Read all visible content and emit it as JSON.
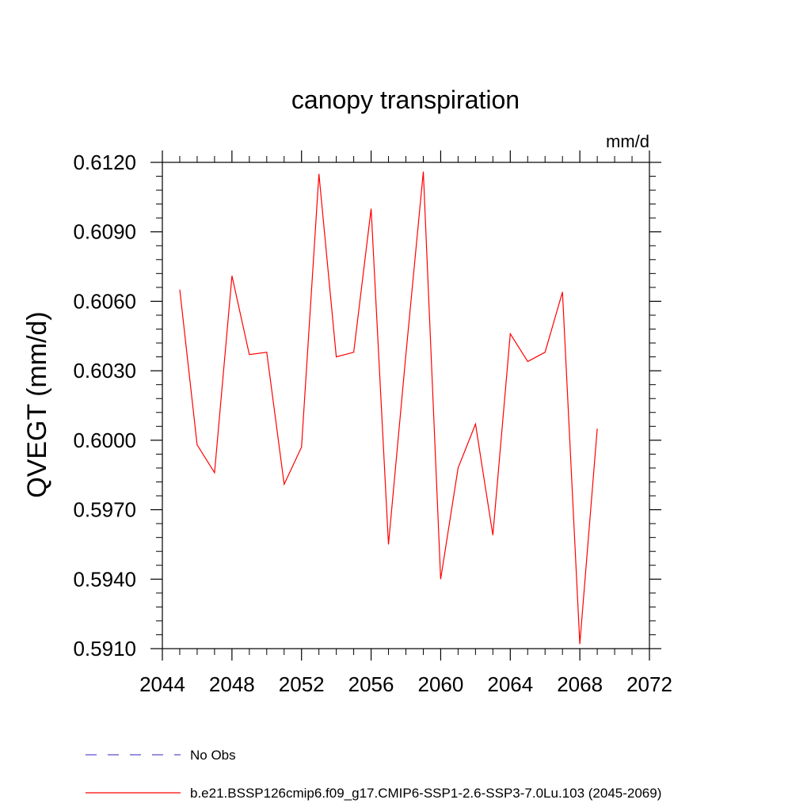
{
  "chart_data": {
    "type": "line",
    "title": "canopy transpiration",
    "units_label": "mm/d",
    "ylabel": "QVEGT  (mm/d)",
    "xlabel": "",
    "xlim": [
      2044,
      2072
    ],
    "ylim": [
      0.591,
      0.612
    ],
    "x_ticks": [
      2044,
      2048,
      2052,
      2056,
      2060,
      2064,
      2068,
      2072
    ],
    "x_tick_labels": [
      "2044",
      "2048",
      "2052",
      "2056",
      "2060",
      "2064",
      "2068",
      "2072"
    ],
    "y_ticks": [
      0.591,
      0.594,
      0.597,
      0.6,
      0.603,
      0.606,
      0.609,
      0.612
    ],
    "y_tick_labels": [
      "0.5910",
      "0.5940",
      "0.5970",
      "0.6000",
      "0.6030",
      "0.6060",
      "0.6090",
      "0.6120"
    ],
    "grid": false,
    "legend_position": "bottom-left",
    "series": [
      {
        "name": "b.e21.BSSP126cmip6.f09_g17.CMIP6-SSP1-2.6-SSP3-7.0Lu.103 (2045-2069)",
        "color": "#ff0000",
        "style": "solid",
        "x": [
          2045,
          2046,
          2047,
          2048,
          2049,
          2050,
          2051,
          2052,
          2053,
          2054,
          2055,
          2056,
          2057,
          2058,
          2059,
          2060,
          2061,
          2062,
          2063,
          2064,
          2065,
          2066,
          2067,
          2068,
          2069
        ],
        "y": [
          0.6065,
          0.5998,
          0.5986,
          0.6071,
          0.6037,
          0.6038,
          0.5981,
          0.5997,
          0.6115,
          0.6036,
          0.6038,
          0.61,
          0.5955,
          0.6037,
          0.6116,
          0.594,
          0.5988,
          0.6007,
          0.5959,
          0.6046,
          0.6034,
          0.6038,
          0.6064,
          0.5912,
          0.6005
        ]
      }
    ],
    "legend": [
      {
        "label": "No Obs",
        "color": "#5a4fcf",
        "style": "dashed"
      },
      {
        "label": "b.e21.BSSP126cmip6.f09_g17.CMIP6-SSP1-2.6-SSP3-7.0Lu.103 (2045-2069)",
        "color": "#ff0000",
        "style": "solid"
      }
    ]
  }
}
